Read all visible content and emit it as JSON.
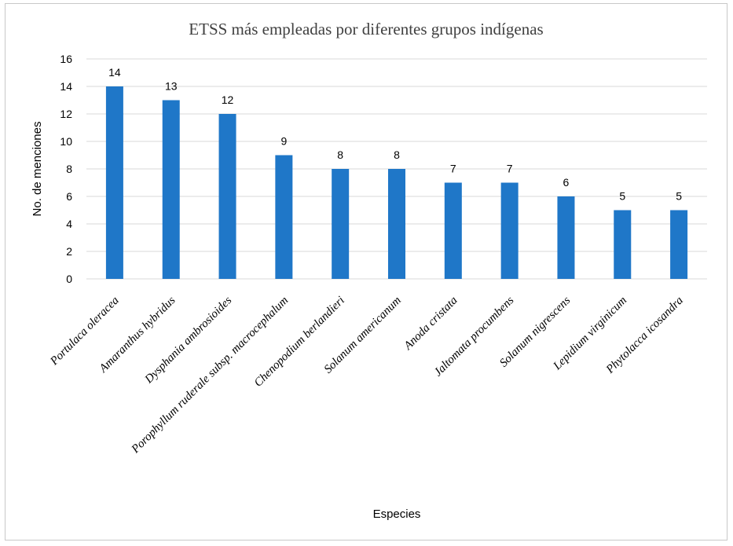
{
  "chart_data": {
    "type": "bar",
    "title": "ETSS más empleadas por diferentes grupos indígenas",
    "xlabel": "Especies",
    "ylabel": "No. de menciones",
    "ylim": [
      0,
      16
    ],
    "yticks": [
      0,
      2,
      4,
      6,
      8,
      10,
      12,
      14,
      16
    ],
    "categories": [
      "Portulaca oleracea",
      "Amaranthus hybridus",
      "Dysphania ambrosioides",
      "Porophyllum ruderale  subsp. macrocephalum",
      "Chenopodium berlandieri",
      "Solanum americanum",
      "Anoda cristata",
      "Jaltomata procumbens",
      "Solanum nigrescens",
      "Lepidium virginicum",
      "Phytolacca icosandra"
    ],
    "values": [
      14,
      13,
      12,
      9,
      8,
      8,
      7,
      7,
      6,
      5,
      5
    ],
    "grid": true,
    "legend": "none",
    "bar_color": "#1f77c8",
    "grid_color": "#d9d9d9"
  }
}
